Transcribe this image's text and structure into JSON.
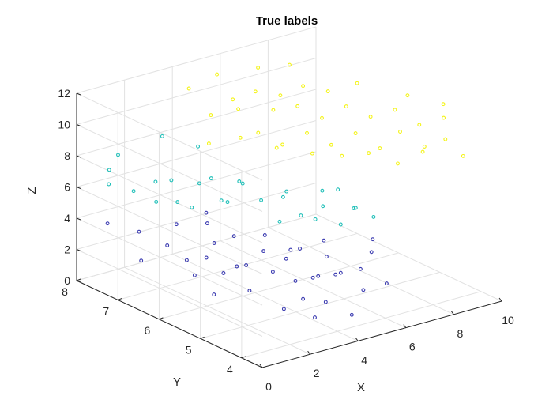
{
  "chart_data": {
    "type": "scatter3d",
    "title": "True labels",
    "xlabel": "X",
    "ylabel": "Y",
    "zlabel": "Z",
    "xlim": [
      0,
      10
    ],
    "ylim": [
      3.5,
      8
    ],
    "zlim": [
      0,
      12
    ],
    "xticks": [
      "0",
      "2",
      "4",
      "6",
      "8",
      "10"
    ],
    "yticks": [
      "4",
      "5",
      "6",
      "7",
      "8"
    ],
    "zticks": [
      "0",
      "2",
      "4",
      "6",
      "8",
      "10",
      "12"
    ],
    "grid": true,
    "colors": {
      "class1": "#3a3ab0",
      "class2": "#1fbfb8",
      "class3": "#f4f41a"
    },
    "series": [
      {
        "color_key": "class1",
        "points": [
          [
            1.2,
            6.5,
            3.6
          ],
          [
            1.5,
            6.2,
            2.9
          ],
          [
            1.8,
            5.9,
            3.3
          ],
          [
            2.0,
            5.6,
            2.6
          ],
          [
            2.3,
            6.0,
            3.9
          ],
          [
            2.6,
            5.4,
            3.1
          ],
          [
            2.9,
            5.8,
            2.4
          ],
          [
            3.2,
            5.1,
            2.8
          ],
          [
            3.5,
            5.5,
            3.5
          ],
          [
            3.8,
            4.9,
            2.2
          ],
          [
            4.1,
            5.3,
            3.0
          ],
          [
            4.4,
            4.7,
            2.5
          ],
          [
            4.7,
            5.0,
            1.9
          ],
          [
            5.0,
            4.5,
            2.7
          ],
          [
            5.3,
            4.8,
            2.1
          ],
          [
            5.6,
            4.3,
            1.6
          ],
          [
            2.1,
            6.8,
            4.2
          ],
          [
            2.7,
            6.4,
            4.5
          ],
          [
            3.3,
            6.1,
            3.8
          ],
          [
            3.9,
            5.7,
            4.1
          ],
          [
            4.5,
            5.2,
            3.6
          ],
          [
            5.1,
            4.9,
            3.2
          ],
          [
            1.4,
            7.3,
            3.4
          ],
          [
            0.8,
            6.9,
            2.3
          ],
          [
            6.0,
            4.6,
            2.4
          ],
          [
            6.4,
            4.2,
            1.8
          ],
          [
            4.2,
            4.4,
            1.3
          ],
          [
            3.6,
            4.6,
            1.5
          ],
          [
            2.4,
            5.2,
            1.8
          ],
          [
            6.8,
            4.8,
            2.9
          ],
          [
            7.2,
            5.0,
            3.3
          ],
          [
            3.0,
            6.6,
            4.8
          ],
          [
            2.0,
            6.3,
            1.6
          ],
          [
            4.8,
            5.6,
            2.9
          ],
          [
            5.5,
            5.2,
            3.7
          ],
          [
            0.6,
            7.6,
            3.9
          ],
          [
            1.6,
            5.6,
            1.4
          ],
          [
            3.4,
            4.2,
            0.9
          ],
          [
            2.8,
            4.6,
            1.2
          ],
          [
            4.6,
            4.0,
            0.8
          ]
        ]
      },
      {
        "color_key": "class2",
        "points": [
          [
            1.0,
            7.2,
            6.3
          ],
          [
            1.4,
            6.9,
            7.1
          ],
          [
            1.8,
            6.6,
            6.0
          ],
          [
            2.2,
            6.3,
            7.4
          ],
          [
            2.6,
            6.0,
            6.5
          ],
          [
            3.0,
            5.8,
            7.8
          ],
          [
            3.4,
            5.5,
            6.8
          ],
          [
            3.8,
            5.2,
            7.2
          ],
          [
            4.2,
            5.0,
            6.1
          ],
          [
            4.6,
            4.7,
            6.9
          ],
          [
            5.0,
            4.5,
            5.8
          ],
          [
            5.4,
            4.8,
            7.5
          ],
          [
            1.2,
            6.4,
            7.9
          ],
          [
            2.0,
            5.9,
            8.3
          ],
          [
            2.8,
            5.6,
            8.0
          ],
          [
            3.6,
            5.0,
            7.9
          ],
          [
            4.4,
            4.6,
            8.1
          ],
          [
            5.2,
            4.3,
            7.0
          ],
          [
            0.7,
            7.4,
            8.5
          ],
          [
            1.6,
            7.0,
            5.6
          ],
          [
            2.4,
            6.6,
            5.4
          ],
          [
            3.2,
            6.2,
            5.9
          ],
          [
            4.0,
            5.4,
            5.3
          ],
          [
            4.8,
            5.0,
            5.6
          ],
          [
            5.8,
            4.6,
            6.4
          ],
          [
            6.2,
            4.4,
            5.9
          ],
          [
            1.0,
            7.8,
            6.0
          ],
          [
            0.5,
            7.5,
            7.5
          ],
          [
            3.0,
            6.8,
            8.8
          ],
          [
            2.2,
            7.2,
            9.3
          ]
        ]
      },
      {
        "color_key": "class3",
        "points": [
          [
            5.0,
            6.5,
            9.2
          ],
          [
            5.5,
            6.2,
            8.6
          ],
          [
            6.0,
            5.9,
            9.5
          ],
          [
            6.5,
            5.6,
            8.9
          ],
          [
            7.0,
            5.3,
            9.8
          ],
          [
            7.5,
            5.0,
            9.0
          ],
          [
            8.0,
            4.8,
            10.1
          ],
          [
            8.5,
            4.5,
            9.3
          ],
          [
            5.8,
            6.6,
            10.2
          ],
          [
            6.3,
            6.3,
            10.6
          ],
          [
            6.8,
            6.0,
            10.0
          ],
          [
            7.3,
            5.7,
            10.9
          ],
          [
            7.8,
            5.4,
            10.4
          ],
          [
            8.3,
            5.1,
            11.0
          ],
          [
            8.8,
            4.8,
            10.2
          ],
          [
            9.3,
            4.5,
            10.8
          ],
          [
            4.8,
            7.0,
            10.8
          ],
          [
            5.4,
            6.8,
            11.3
          ],
          [
            6.1,
            6.6,
            11.0
          ],
          [
            6.7,
            6.4,
            11.6
          ],
          [
            7.4,
            6.2,
            11.2
          ],
          [
            8.1,
            5.9,
            11.8
          ],
          [
            4.4,
            7.3,
            9.6
          ],
          [
            5.2,
            7.1,
            9.9
          ],
          [
            6.6,
            5.4,
            8.4
          ],
          [
            7.2,
            5.1,
            8.7
          ],
          [
            7.9,
            4.8,
            8.1
          ],
          [
            8.6,
            4.6,
            8.8
          ],
          [
            9.2,
            4.4,
            9.6
          ],
          [
            9.6,
            4.2,
            8.6
          ],
          [
            4.0,
            7.6,
            11.1
          ],
          [
            5.0,
            7.5,
            11.7
          ],
          [
            6.2,
            7.2,
            12.0
          ],
          [
            7.0,
            6.9,
            12.2
          ],
          [
            9.0,
            5.2,
            11.5
          ],
          [
            9.8,
            4.8,
            11.1
          ],
          [
            3.8,
            7.0,
            8.4
          ],
          [
            4.6,
            6.7,
            8.8
          ],
          [
            5.6,
            6.4,
            8.1
          ],
          [
            6.4,
            6.0,
            7.9
          ]
        ]
      }
    ]
  }
}
